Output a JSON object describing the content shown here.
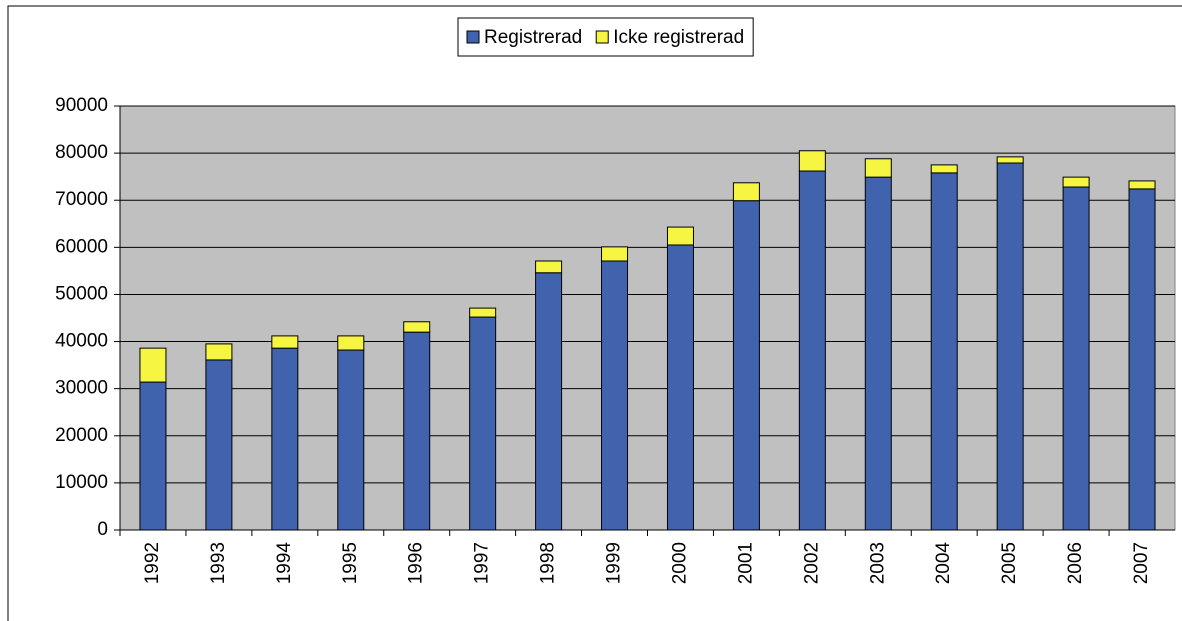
{
  "chart_data": {
    "type": "stacked_bar",
    "categories": [
      "1992",
      "1993",
      "1994",
      "1995",
      "1996",
      "1997",
      "1998",
      "1999",
      "2000",
      "2001",
      "2002",
      "2003",
      "2004",
      "2005",
      "2006",
      "2007"
    ],
    "series": [
      {
        "name": "Registrerad",
        "color": "#4163ae",
        "values": [
          31400,
          36100,
          38600,
          38200,
          42000,
          45200,
          54600,
          57100,
          60500,
          69900,
          76200,
          74900,
          75800,
          77900,
          72800,
          72400
        ]
      },
      {
        "name": "Icke registrerad",
        "color": "#f5f542",
        "values": [
          7200,
          3400,
          2600,
          3000,
          2200,
          1900,
          2500,
          3000,
          3800,
          3800,
          4300,
          3900,
          1700,
          1300,
          2100,
          1700
        ]
      }
    ],
    "ylim": [
      0,
      90000
    ],
    "yticks": [
      0,
      10000,
      20000,
      30000,
      40000,
      50000,
      60000,
      70000,
      80000,
      90000
    ],
    "grid": true,
    "legend": "top",
    "plot_background": "#c0c0c0"
  }
}
